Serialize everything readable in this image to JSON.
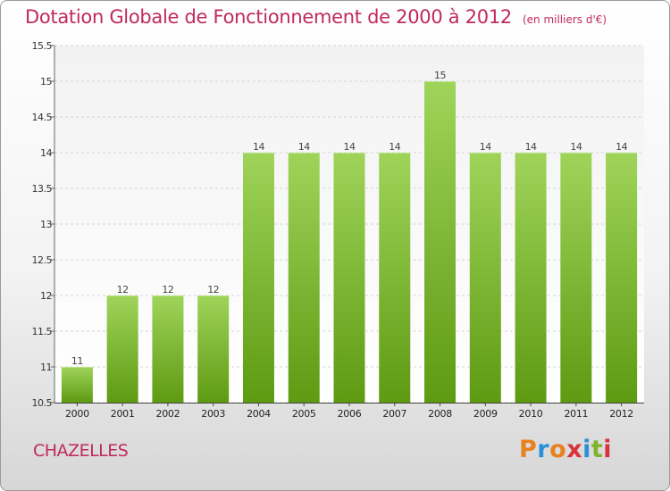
{
  "header": {
    "title": "Dotation Globale de Fonctionnement de 2000 à 2012",
    "unit": "(en milliers d'€)"
  },
  "footer": {
    "commune": "CHAZELLES",
    "logo_letters": [
      "P",
      "r",
      "o",
      "x",
      "i",
      "t",
      "i"
    ]
  },
  "colors": {
    "title": "#c02a5c",
    "bar_top": "#9fd45a",
    "bar_bottom": "#5e9a12",
    "logo": [
      "#e8811f",
      "#2a8fd6",
      "#e8811f",
      "#d8323a",
      "#2a8fd6",
      "#7fb32a",
      "#d8323a"
    ]
  },
  "chart_data": {
    "type": "bar",
    "categories": [
      "2000",
      "2001",
      "2002",
      "2003",
      "2004",
      "2005",
      "2006",
      "2007",
      "2008",
      "2009",
      "2010",
      "2011",
      "2012"
    ],
    "values": [
      11,
      12,
      12,
      12,
      14,
      14,
      14,
      14,
      15,
      14,
      14,
      14,
      14
    ],
    "value_labels": [
      "11",
      "12",
      "12",
      "12",
      "14",
      "14",
      "14",
      "14",
      "15",
      "14",
      "14",
      "14",
      "14"
    ],
    "yticks": [
      "10.5",
      "11",
      "11.5",
      "12",
      "12.5",
      "13",
      "13.5",
      "14",
      "14.5",
      "15",
      "15.5"
    ],
    "ylim": [
      10.5,
      15.5
    ],
    "grid": true,
    "legend": "none"
  }
}
